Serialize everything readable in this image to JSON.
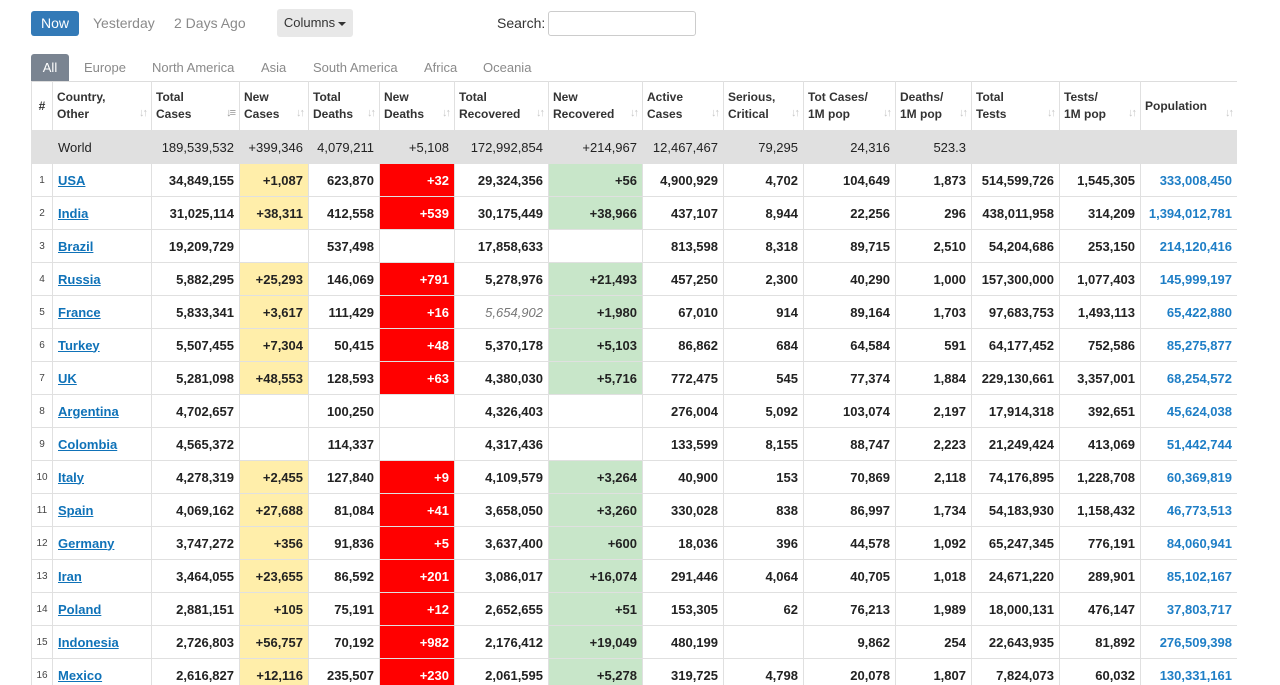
{
  "toolbar": {
    "now": "Now",
    "yesterday": "Yesterday",
    "two_days_ago": "2 Days Ago",
    "columns": "Columns",
    "search_label": "Search:",
    "search_value": "",
    "search_placeholder": ""
  },
  "tabs": [
    "All",
    "Europe",
    "North America",
    "Asia",
    "South America",
    "Africa",
    "Oceania"
  ],
  "active_tab": "All",
  "colors": {
    "now_button": "#337ab7",
    "new_cases_bg": "#ffeeaa",
    "new_deaths_bg": "#ff0000",
    "new_recovered_bg": "#c8e6c9",
    "world_row_bg": "#e0e0e0",
    "link": "#0f72b8"
  },
  "columns": [
    {
      "line1": "#",
      "line2": ""
    },
    {
      "line1": "Country,",
      "line2": "Other"
    },
    {
      "line1": "Total",
      "line2": "Cases"
    },
    {
      "line1": "New",
      "line2": "Cases"
    },
    {
      "line1": "Total",
      "line2": "Deaths"
    },
    {
      "line1": "New",
      "line2": "Deaths"
    },
    {
      "line1": "Total",
      "line2": "Recovered"
    },
    {
      "line1": "New",
      "line2": "Recovered"
    },
    {
      "line1": "Active",
      "line2": "Cases"
    },
    {
      "line1": "Serious,",
      "line2": "Critical"
    },
    {
      "line1": "Tot Cases/",
      "line2": "1M pop"
    },
    {
      "line1": "Deaths/",
      "line2": "1M pop"
    },
    {
      "line1": "Total",
      "line2": "Tests"
    },
    {
      "line1": "Tests/",
      "line2": "1M pop"
    },
    {
      "line1": "",
      "line2": "Population"
    }
  ],
  "world": {
    "country": "World",
    "total_cases": "189,539,532",
    "new_cases": "+399,346",
    "total_deaths": "4,079,211",
    "new_deaths": "+5,108",
    "total_recovered": "172,992,854",
    "new_recovered": "+214,967",
    "active_cases": "12,467,467",
    "serious": "79,295",
    "cases_per_m": "24,316",
    "deaths_per_m": "523.3",
    "total_tests": "",
    "tests_per_m": "",
    "population": ""
  },
  "rows": [
    {
      "rank": "1",
      "country": "USA",
      "total_cases": "34,849,155",
      "new_cases": "+1,087",
      "total_deaths": "623,870",
      "new_deaths": "+32",
      "total_recovered": "29,324,356",
      "new_recovered": "+56",
      "active_cases": "4,900,929",
      "serious": "4,702",
      "cases_per_m": "104,649",
      "deaths_per_m": "1,873",
      "total_tests": "514,599,726",
      "tests_per_m": "1,545,305",
      "population": "333,008,450"
    },
    {
      "rank": "2",
      "country": "India",
      "total_cases": "31,025,114",
      "new_cases": "+38,311",
      "total_deaths": "412,558",
      "new_deaths": "+539",
      "total_recovered": "30,175,449",
      "new_recovered": "+38,966",
      "active_cases": "437,107",
      "serious": "8,944",
      "cases_per_m": "22,256",
      "deaths_per_m": "296",
      "total_tests": "438,011,958",
      "tests_per_m": "314,209",
      "population": "1,394,012,781"
    },
    {
      "rank": "3",
      "country": "Brazil",
      "total_cases": "19,209,729",
      "new_cases": "",
      "total_deaths": "537,498",
      "new_deaths": "",
      "total_recovered": "17,858,633",
      "new_recovered": "",
      "active_cases": "813,598",
      "serious": "8,318",
      "cases_per_m": "89,715",
      "deaths_per_m": "2,510",
      "total_tests": "54,204,686",
      "tests_per_m": "253,150",
      "population": "214,120,416"
    },
    {
      "rank": "4",
      "country": "Russia",
      "total_cases": "5,882,295",
      "new_cases": "+25,293",
      "total_deaths": "146,069",
      "new_deaths": "+791",
      "total_recovered": "5,278,976",
      "new_recovered": "+21,493",
      "active_cases": "457,250",
      "serious": "2,300",
      "cases_per_m": "40,290",
      "deaths_per_m": "1,000",
      "total_tests": "157,300,000",
      "tests_per_m": "1,077,403",
      "population": "145,999,197"
    },
    {
      "rank": "5",
      "country": "France",
      "total_cases": "5,833,341",
      "new_cases": "+3,617",
      "total_deaths": "111,429",
      "new_deaths": "+16",
      "total_recovered": "5,654,902",
      "recovered_italic": true,
      "new_recovered": "+1,980",
      "active_cases": "67,010",
      "serious": "914",
      "cases_per_m": "89,164",
      "deaths_per_m": "1,703",
      "total_tests": "97,683,753",
      "tests_per_m": "1,493,113",
      "population": "65,422,880"
    },
    {
      "rank": "6",
      "country": "Turkey",
      "total_cases": "5,507,455",
      "new_cases": "+7,304",
      "total_deaths": "50,415",
      "new_deaths": "+48",
      "total_recovered": "5,370,178",
      "new_recovered": "+5,103",
      "active_cases": "86,862",
      "serious": "684",
      "cases_per_m": "64,584",
      "deaths_per_m": "591",
      "total_tests": "64,177,452",
      "tests_per_m": "752,586",
      "population": "85,275,877"
    },
    {
      "rank": "7",
      "country": "UK",
      "total_cases": "5,281,098",
      "new_cases": "+48,553",
      "total_deaths": "128,593",
      "new_deaths": "+63",
      "total_recovered": "4,380,030",
      "new_recovered": "+5,716",
      "active_cases": "772,475",
      "serious": "545",
      "cases_per_m": "77,374",
      "deaths_per_m": "1,884",
      "total_tests": "229,130,661",
      "tests_per_m": "3,357,001",
      "population": "68,254,572"
    },
    {
      "rank": "8",
      "country": "Argentina",
      "total_cases": "4,702,657",
      "new_cases": "",
      "total_deaths": "100,250",
      "new_deaths": "",
      "total_recovered": "4,326,403",
      "new_recovered": "",
      "active_cases": "276,004",
      "serious": "5,092",
      "cases_per_m": "103,074",
      "deaths_per_m": "2,197",
      "total_tests": "17,914,318",
      "tests_per_m": "392,651",
      "population": "45,624,038"
    },
    {
      "rank": "9",
      "country": "Colombia",
      "total_cases": "4,565,372",
      "new_cases": "",
      "total_deaths": "114,337",
      "new_deaths": "",
      "total_recovered": "4,317,436",
      "new_recovered": "",
      "active_cases": "133,599",
      "serious": "8,155",
      "cases_per_m": "88,747",
      "deaths_per_m": "2,223",
      "total_tests": "21,249,424",
      "tests_per_m": "413,069",
      "population": "51,442,744"
    },
    {
      "rank": "10",
      "country": "Italy",
      "total_cases": "4,278,319",
      "new_cases": "+2,455",
      "total_deaths": "127,840",
      "new_deaths": "+9",
      "total_recovered": "4,109,579",
      "new_recovered": "+3,264",
      "active_cases": "40,900",
      "serious": "153",
      "cases_per_m": "70,869",
      "deaths_per_m": "2,118",
      "total_tests": "74,176,895",
      "tests_per_m": "1,228,708",
      "population": "60,369,819"
    },
    {
      "rank": "11",
      "country": "Spain",
      "total_cases": "4,069,162",
      "new_cases": "+27,688",
      "total_deaths": "81,084",
      "new_deaths": "+41",
      "total_recovered": "3,658,050",
      "new_recovered": "+3,260",
      "active_cases": "330,028",
      "serious": "838",
      "cases_per_m": "86,997",
      "deaths_per_m": "1,734",
      "total_tests": "54,183,930",
      "tests_per_m": "1,158,432",
      "population": "46,773,513"
    },
    {
      "rank": "12",
      "country": "Germany",
      "total_cases": "3,747,272",
      "new_cases": "+356",
      "total_deaths": "91,836",
      "new_deaths": "+5",
      "total_recovered": "3,637,400",
      "new_recovered": "+600",
      "active_cases": "18,036",
      "serious": "396",
      "cases_per_m": "44,578",
      "deaths_per_m": "1,092",
      "total_tests": "65,247,345",
      "tests_per_m": "776,191",
      "population": "84,060,941"
    },
    {
      "rank": "13",
      "country": "Iran",
      "total_cases": "3,464,055",
      "new_cases": "+23,655",
      "total_deaths": "86,592",
      "new_deaths": "+201",
      "total_recovered": "3,086,017",
      "new_recovered": "+16,074",
      "active_cases": "291,446",
      "serious": "4,064",
      "cases_per_m": "40,705",
      "deaths_per_m": "1,018",
      "total_tests": "24,671,220",
      "tests_per_m": "289,901",
      "population": "85,102,167"
    },
    {
      "rank": "14",
      "country": "Poland",
      "total_cases": "2,881,151",
      "new_cases": "+105",
      "total_deaths": "75,191",
      "new_deaths": "+12",
      "total_recovered": "2,652,655",
      "new_recovered": "+51",
      "active_cases": "153,305",
      "serious": "62",
      "cases_per_m": "76,213",
      "deaths_per_m": "1,989",
      "total_tests": "18,000,131",
      "tests_per_m": "476,147",
      "population": "37,803,717"
    },
    {
      "rank": "15",
      "country": "Indonesia",
      "total_cases": "2,726,803",
      "new_cases": "+56,757",
      "total_deaths": "70,192",
      "new_deaths": "+982",
      "total_recovered": "2,176,412",
      "new_recovered": "+19,049",
      "active_cases": "480,199",
      "serious": "",
      "cases_per_m": "9,862",
      "deaths_per_m": "254",
      "total_tests": "22,643,935",
      "tests_per_m": "81,892",
      "population": "276,509,398"
    },
    {
      "rank": "16",
      "country": "Mexico",
      "total_cases": "2,616,827",
      "new_cases": "+12,116",
      "total_deaths": "235,507",
      "new_deaths": "+230",
      "total_recovered": "2,061,595",
      "new_recovered": "+5,278",
      "active_cases": "319,725",
      "serious": "4,798",
      "cases_per_m": "20,078",
      "deaths_per_m": "1,807",
      "total_tests": "7,824,073",
      "tests_per_m": "60,032",
      "population": "130,331,161"
    }
  ]
}
